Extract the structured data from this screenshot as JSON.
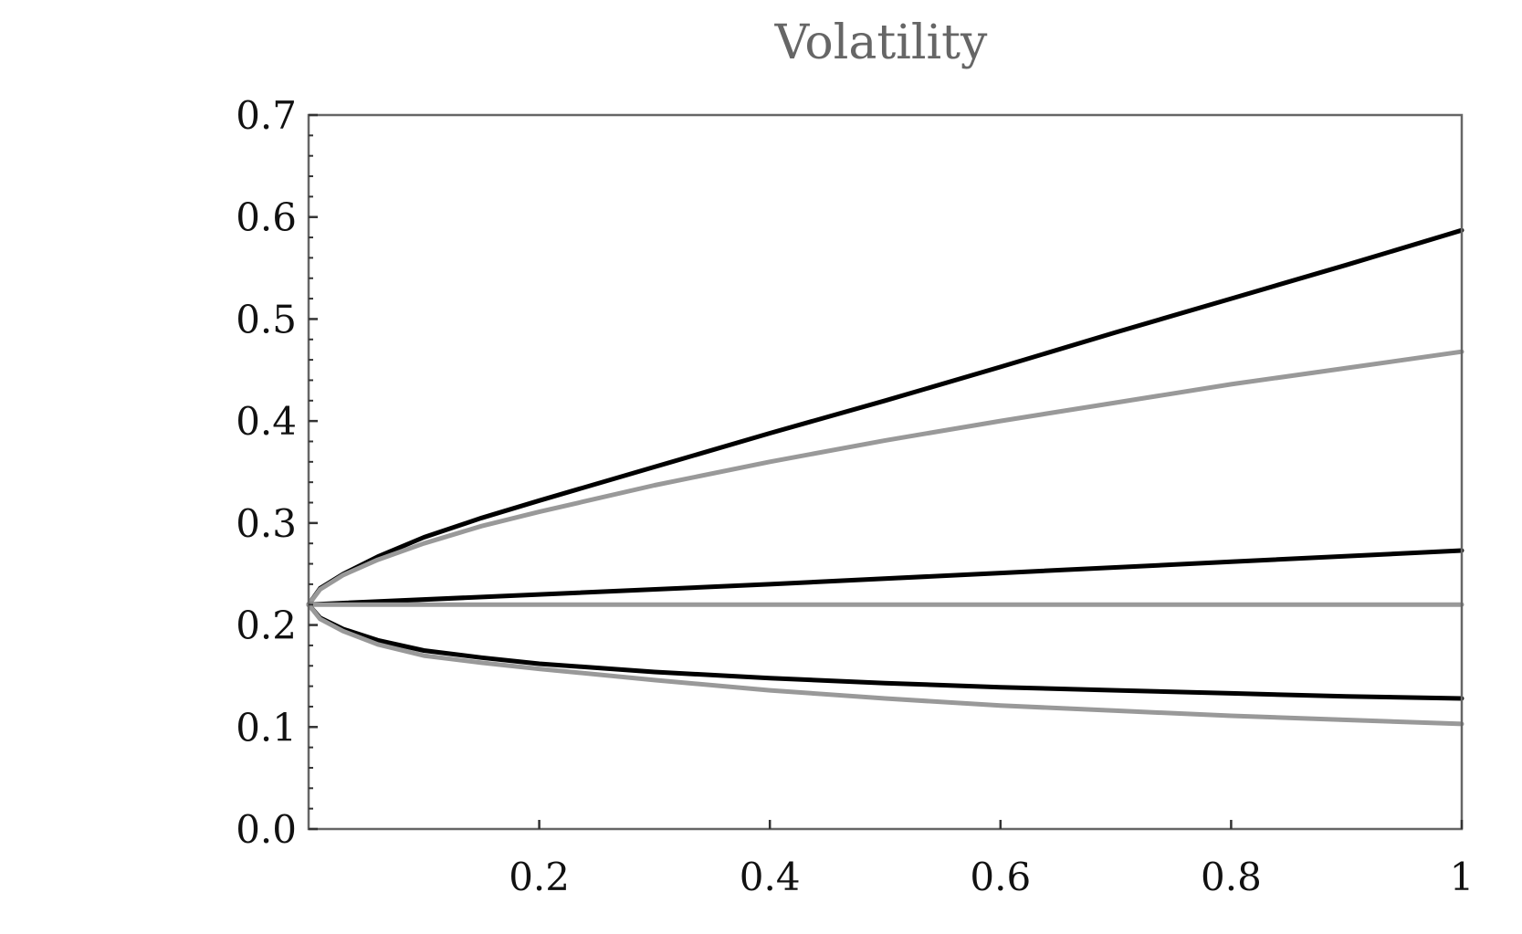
{
  "chart_data": {
    "type": "line",
    "title": "Volatility",
    "xlabel": "",
    "ylabel": "",
    "xlim": [
      0,
      1
    ],
    "ylim": [
      0,
      0.7
    ],
    "x_ticks": [
      0.2,
      0.4,
      0.6,
      0.8,
      1
    ],
    "x_tick_labels": [
      "0.2",
      "0.4",
      "0.6",
      "0.8",
      "1"
    ],
    "y_ticks": [
      0.0,
      0.1,
      0.2,
      0.3,
      0.4,
      0.5,
      0.6,
      0.7
    ],
    "y_tick_labels": [
      "0.0",
      "0.1",
      "0.2",
      "0.3",
      "0.4",
      "0.5",
      "0.6",
      "0.7"
    ],
    "grid": false,
    "legend": "none",
    "series": [
      {
        "color": "#000000",
        "x": [
          0,
          0.01,
          0.03,
          0.06,
          0.1,
          0.15,
          0.2,
          0.3,
          0.4,
          0.5,
          0.6,
          0.7,
          0.8,
          0.9,
          1.0
        ],
        "y": [
          0.22,
          0.236,
          0.25,
          0.267,
          0.286,
          0.305,
          0.322,
          0.355,
          0.388,
          0.42,
          0.453,
          0.487,
          0.52,
          0.553,
          0.587
        ]
      },
      {
        "color": "#999999",
        "x": [
          0,
          0.01,
          0.03,
          0.06,
          0.1,
          0.15,
          0.2,
          0.3,
          0.4,
          0.5,
          0.6,
          0.7,
          0.8,
          0.9,
          1.0
        ],
        "y": [
          0.22,
          0.235,
          0.249,
          0.264,
          0.28,
          0.297,
          0.311,
          0.337,
          0.36,
          0.381,
          0.4,
          0.418,
          0.436,
          0.452,
          0.468
        ]
      },
      {
        "color": "#000000",
        "x": [
          0,
          0.2,
          0.4,
          0.6,
          0.8,
          1.0
        ],
        "y": [
          0.22,
          0.23,
          0.24,
          0.251,
          0.262,
          0.273
        ]
      },
      {
        "color": "#999999",
        "x": [
          0,
          0.2,
          0.4,
          0.6,
          0.8,
          1.0
        ],
        "y": [
          0.22,
          0.22,
          0.22,
          0.22,
          0.22,
          0.22
        ]
      },
      {
        "color": "#000000",
        "x": [
          0,
          0.01,
          0.03,
          0.06,
          0.1,
          0.15,
          0.2,
          0.3,
          0.4,
          0.5,
          0.6,
          0.7,
          0.8,
          0.9,
          1.0
        ],
        "y": [
          0.22,
          0.207,
          0.196,
          0.185,
          0.175,
          0.168,
          0.162,
          0.154,
          0.148,
          0.143,
          0.139,
          0.136,
          0.133,
          0.13,
          0.128
        ]
      },
      {
        "color": "#999999",
        "x": [
          0,
          0.01,
          0.03,
          0.06,
          0.1,
          0.15,
          0.2,
          0.3,
          0.4,
          0.5,
          0.6,
          0.7,
          0.8,
          0.9,
          1.0
        ],
        "y": [
          0.22,
          0.206,
          0.194,
          0.181,
          0.17,
          0.163,
          0.157,
          0.146,
          0.136,
          0.128,
          0.121,
          0.116,
          0.111,
          0.107,
          0.103
        ]
      }
    ]
  }
}
